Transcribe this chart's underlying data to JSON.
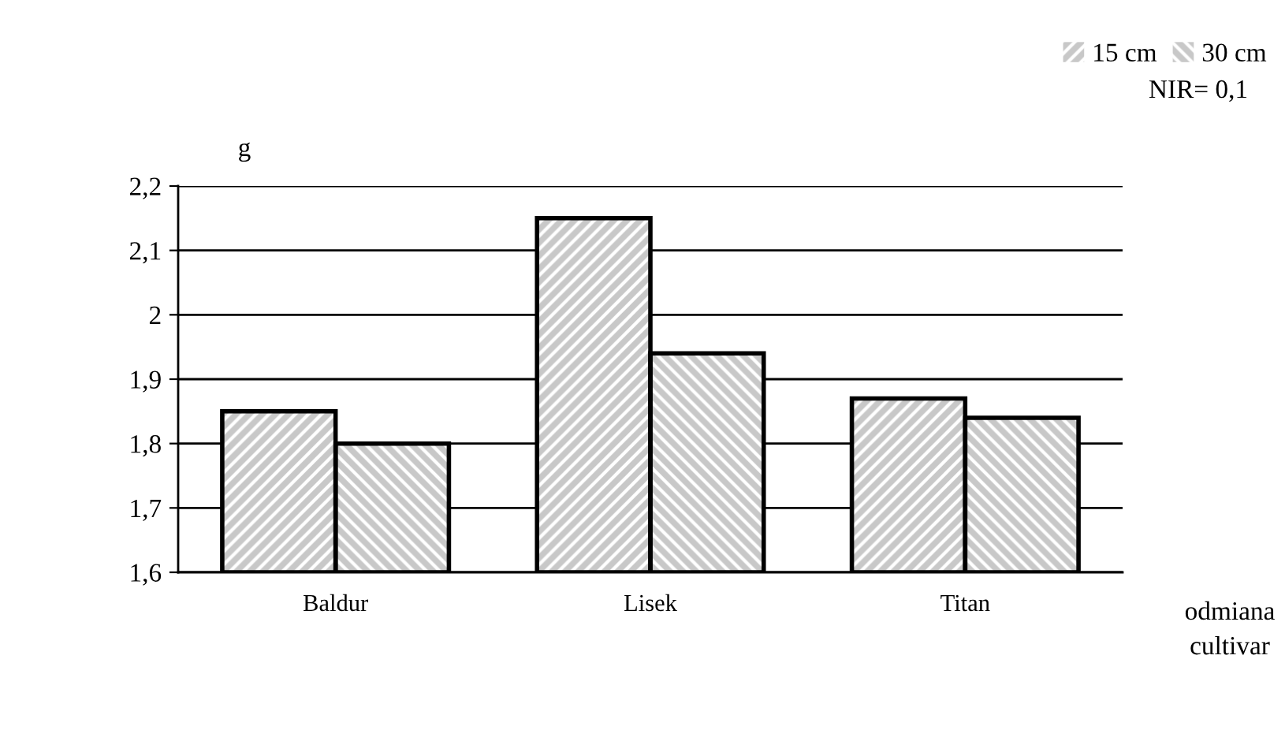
{
  "chart_data": {
    "type": "bar",
    "categories": [
      "Baldur",
      "Lisek",
      "Titan"
    ],
    "series": [
      {
        "name": "15 cm",
        "color": "#c8c8c8",
        "values": [
          1.85,
          2.15,
          1.87
        ]
      },
      {
        "name": "30 cm",
        "color": "#c8c8c8",
        "values": [
          1.8,
          1.94,
          1.84
        ]
      }
    ],
    "ylabel": "g",
    "xlabel": "odmiana\ncultivar",
    "annotations": [
      "NIR= 0,1"
    ],
    "ylim": [
      1.6,
      2.2
    ],
    "yticks": [
      {
        "value": 1.6,
        "label": "1,6"
      },
      {
        "value": 1.7,
        "label": "1,7"
      },
      {
        "value": 1.8,
        "label": "1,8"
      },
      {
        "value": 1.9,
        "label": "1,9"
      },
      {
        "value": 2,
        "label": "2"
      },
      {
        "value": 2.1,
        "label": "2,1"
      },
      {
        "value": 2.2,
        "label": "2,2"
      }
    ],
    "grid": "y",
    "legend": "top right"
  }
}
